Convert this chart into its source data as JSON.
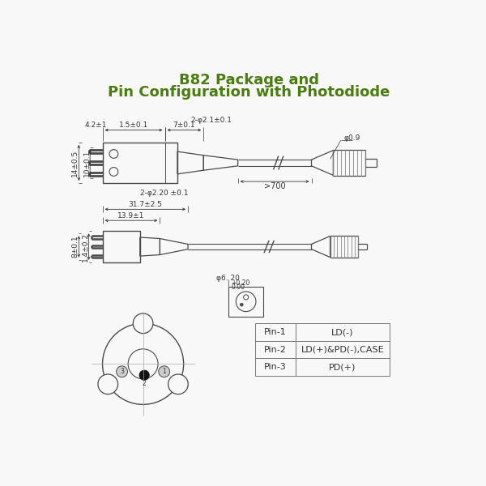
{
  "title_line1": "B82 Package and",
  "title_line2": "Pin Configuration with Photodiode",
  "title_color": "#4a7c10",
  "bg_color": "#f8f8f8",
  "line_color": "#4a4a4a",
  "dim_color": "#333333",
  "pin_table_rows": [
    [
      "Pin-1",
      "LD(-)"
    ],
    [
      "Pin-2",
      "LD(+)&PD(-),CASE"
    ],
    [
      "Pin-3",
      "PD(+)"
    ]
  ]
}
